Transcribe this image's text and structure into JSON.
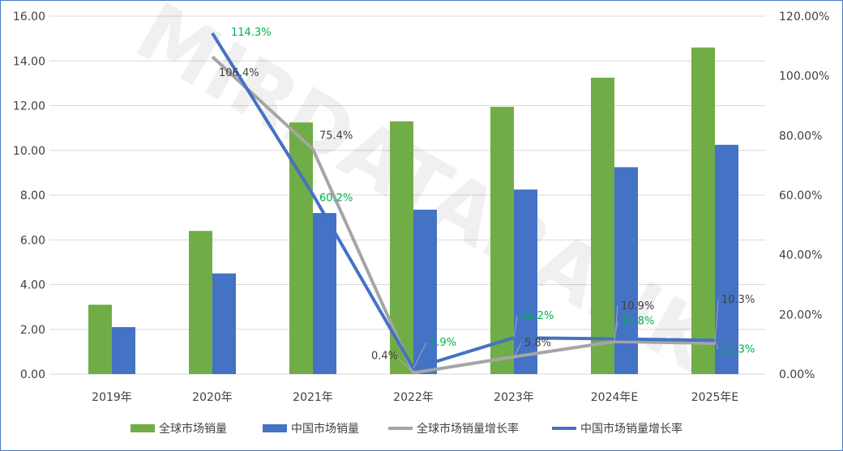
{
  "chart_data": {
    "type": "bar+line",
    "categories": [
      "2019年",
      "2020年",
      "2021年",
      "2022年",
      "2023年",
      "2024年E",
      "2025年E"
    ],
    "left_axis": {
      "ylim": [
        0,
        16
      ],
      "ticks": [
        "0.00",
        "2.00",
        "4.00",
        "6.00",
        "8.00",
        "10.00",
        "12.00",
        "14.00",
        "16.00"
      ]
    },
    "right_axis": {
      "ylim": [
        0,
        120
      ],
      "ticks": [
        "0.00%",
        "20.00%",
        "40.00%",
        "60.00%",
        "80.00%",
        "100.00%",
        "120.00%"
      ]
    },
    "grid": true,
    "legend": "bottom",
    "watermark": "MIRDATABANK",
    "series": [
      {
        "name": "全球市场销量",
        "type": "bar",
        "axis": "left",
        "color": "#70ad47",
        "values": [
          3.1,
          6.4,
          11.25,
          11.3,
          11.95,
          13.25,
          14.6
        ]
      },
      {
        "name": "中国市场销量",
        "type": "bar",
        "axis": "left",
        "color": "#4472c4",
        "values": [
          2.1,
          4.5,
          7.2,
          7.35,
          8.25,
          9.25,
          10.25
        ]
      },
      {
        "name": "全球市场销量增长率",
        "type": "line",
        "axis": "right",
        "color": "#a5a5a5",
        "label_color": "#404040",
        "values": [
          null,
          106.4,
          75.4,
          0.4,
          5.8,
          10.9,
          10.3
        ],
        "labels": [
          "",
          "106.4%",
          "75.4%",
          "0.4%",
          "5.8%",
          "10.9%",
          "10.3%"
        ]
      },
      {
        "name": "中国市场销量增长率",
        "type": "line",
        "axis": "right",
        "color": "#4472c4",
        "label_color": "#00b050",
        "values": [
          null,
          114.3,
          60.2,
          1.9,
          12.2,
          11.8,
          11.3
        ],
        "labels": [
          "",
          "114.3%",
          "60.2%",
          "1.9%",
          "12.2%",
          "11.8%",
          "11.3%"
        ]
      }
    ]
  }
}
